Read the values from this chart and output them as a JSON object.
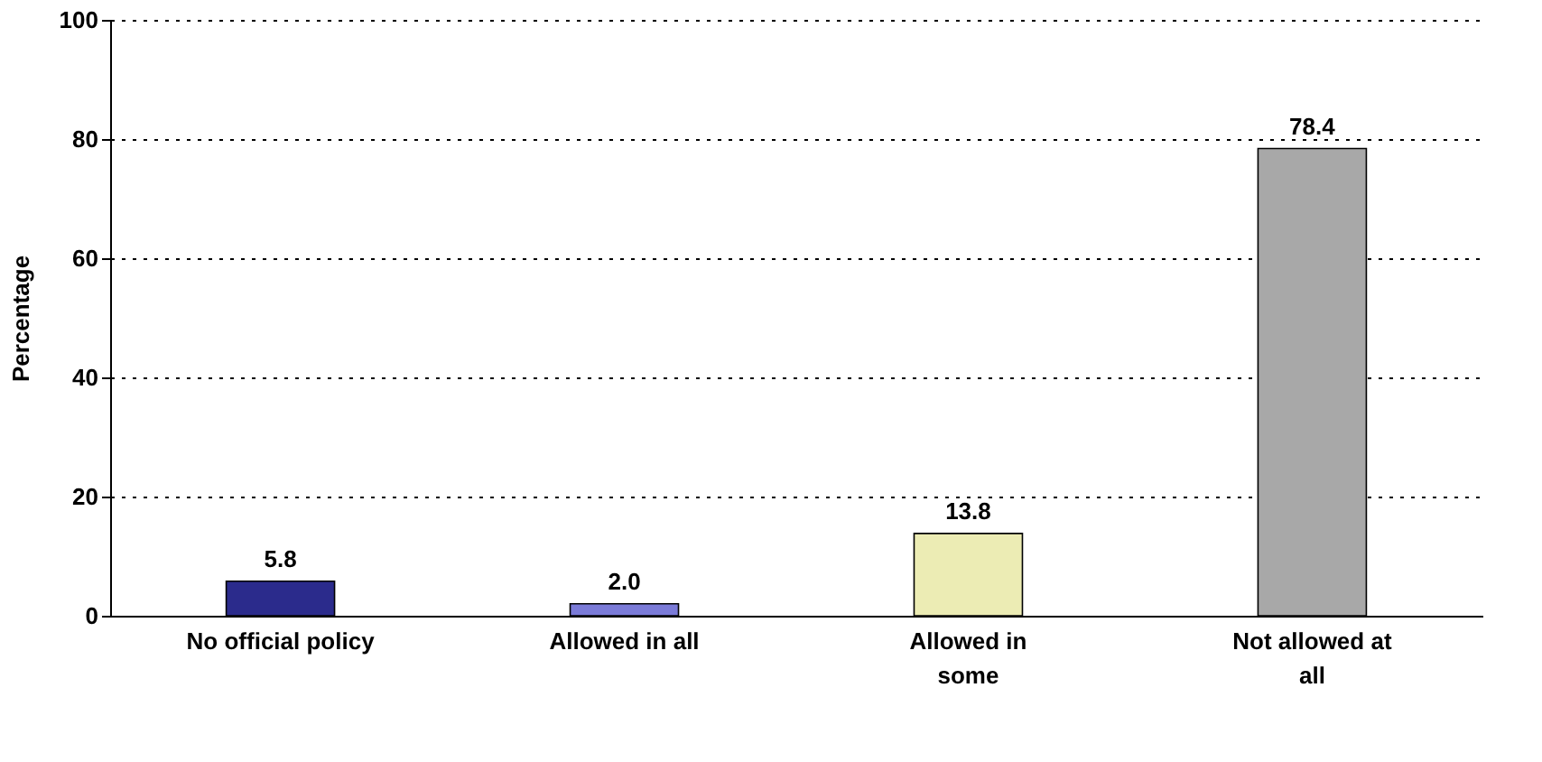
{
  "chart_data": {
    "type": "bar",
    "ylabel": "Percentage",
    "categories": [
      "No official policy",
      "Allowed in all",
      "Allowed in\nsome",
      "Not allowed at\nall"
    ],
    "values": [
      5.8,
      2.0,
      13.8,
      78.4
    ],
    "colors": [
      "#2b2b8c",
      "#7b7bd8",
      "#ececb4",
      "#a8a8a8"
    ],
    "value_labels": [
      "5.8",
      "2.0",
      "13.8",
      "78.4"
    ],
    "ylim": [
      0,
      100
    ],
    "yticks": [
      0,
      20,
      40,
      60,
      80,
      100
    ],
    "grid": "y"
  }
}
